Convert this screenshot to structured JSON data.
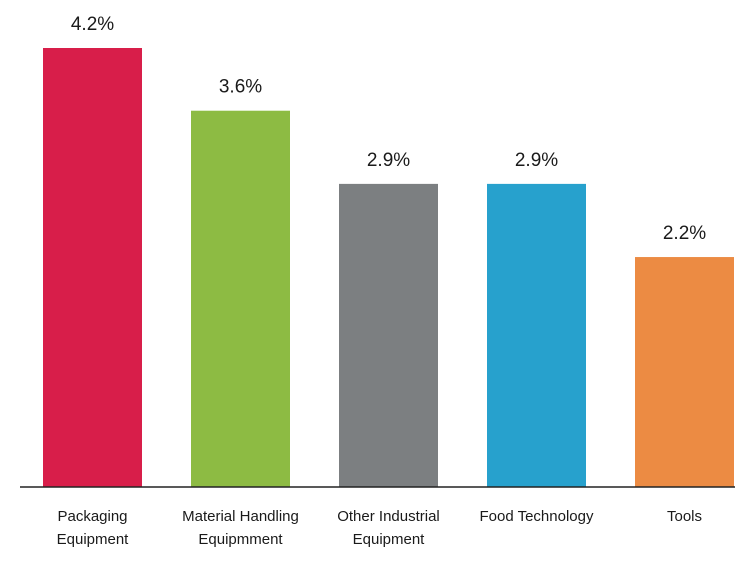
{
  "chart_data": {
    "type": "bar",
    "categories": [
      [
        "Packaging",
        "Equipment"
      ],
      [
        "Material Handling",
        "Equipmment"
      ],
      [
        "Other Industrial",
        "Equipment"
      ],
      [
        "Food Technology"
      ],
      [
        "Tools"
      ]
    ],
    "values": [
      4.2,
      3.6,
      2.9,
      2.9,
      2.2
    ],
    "data_labels": [
      "4.2%",
      "3.6%",
      "2.9%",
      "2.9%",
      "2.2%"
    ],
    "colors": [
      "#D81E4A",
      "#8DBB43",
      "#7C7F81",
      "#27A1CD",
      "#EC8B43"
    ],
    "ylim": [
      0,
      4.2
    ],
    "grid": false,
    "axis_line_color": "#222222",
    "title": "",
    "xlabel": "",
    "ylabel": ""
  }
}
